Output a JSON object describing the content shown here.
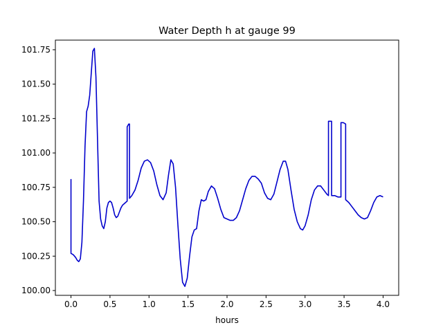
{
  "chart_data": {
    "type": "line",
    "title": "Water Depth h at gauge 99",
    "xlabel": "hours",
    "ylabel": "",
    "xlim": [
      -0.2,
      4.2
    ],
    "ylim": [
      99.965,
      101.82
    ],
    "xticks": [
      0.0,
      0.5,
      1.0,
      1.5,
      2.0,
      2.5,
      3.0,
      3.5,
      4.0
    ],
    "xtick_labels": [
      "0.0",
      "0.5",
      "1.0",
      "1.5",
      "2.0",
      "2.5",
      "3.0",
      "3.5",
      "4.0"
    ],
    "yticks": [
      100.0,
      100.25,
      100.5,
      100.75,
      101.0,
      101.25,
      101.5,
      101.75
    ],
    "ytick_labels": [
      "100.00",
      "100.25",
      "100.50",
      "100.75",
      "101.00",
      "101.25",
      "101.50",
      "101.75"
    ],
    "grid": false,
    "series": [
      {
        "color": "#0000cc",
        "points": [
          [
            0.0,
            100.81
          ],
          [
            0.0,
            100.27
          ],
          [
            0.03,
            100.26
          ],
          [
            0.06,
            100.24
          ],
          [
            0.08,
            100.22
          ],
          [
            0.1,
            100.21
          ],
          [
            0.12,
            100.23
          ],
          [
            0.14,
            100.35
          ],
          [
            0.16,
            100.65
          ],
          [
            0.18,
            101.05
          ],
          [
            0.2,
            101.3
          ],
          [
            0.22,
            101.34
          ],
          [
            0.24,
            101.42
          ],
          [
            0.26,
            101.58
          ],
          [
            0.28,
            101.74
          ],
          [
            0.3,
            101.76
          ],
          [
            0.32,
            101.55
          ],
          [
            0.34,
            101.1
          ],
          [
            0.36,
            100.65
          ],
          [
            0.38,
            100.52
          ],
          [
            0.4,
            100.47
          ],
          [
            0.42,
            100.45
          ],
          [
            0.44,
            100.5
          ],
          [
            0.46,
            100.6
          ],
          [
            0.48,
            100.64
          ],
          [
            0.5,
            100.65
          ],
          [
            0.52,
            100.64
          ],
          [
            0.54,
            100.6
          ],
          [
            0.56,
            100.55
          ],
          [
            0.58,
            100.53
          ],
          [
            0.6,
            100.54
          ],
          [
            0.62,
            100.57
          ],
          [
            0.64,
            100.6
          ],
          [
            0.66,
            100.62
          ],
          [
            0.68,
            100.63
          ],
          [
            0.72,
            100.65
          ],
          [
            0.72,
            101.19
          ],
          [
            0.74,
            101.21
          ],
          [
            0.75,
            101.21
          ],
          [
            0.75,
            100.67
          ],
          [
            0.78,
            100.69
          ],
          [
            0.82,
            100.73
          ],
          [
            0.86,
            100.8
          ],
          [
            0.9,
            100.89
          ],
          [
            0.94,
            100.94
          ],
          [
            0.98,
            100.95
          ],
          [
            1.02,
            100.93
          ],
          [
            1.06,
            100.87
          ],
          [
            1.1,
            100.77
          ],
          [
            1.14,
            100.69
          ],
          [
            1.18,
            100.66
          ],
          [
            1.22,
            100.71
          ],
          [
            1.25,
            100.84
          ],
          [
            1.28,
            100.95
          ],
          [
            1.31,
            100.92
          ],
          [
            1.34,
            100.75
          ],
          [
            1.37,
            100.48
          ],
          [
            1.4,
            100.23
          ],
          [
            1.43,
            100.06
          ],
          [
            1.46,
            100.03
          ],
          [
            1.49,
            100.09
          ],
          [
            1.52,
            100.25
          ],
          [
            1.55,
            100.39
          ],
          [
            1.58,
            100.44
          ],
          [
            1.61,
            100.45
          ],
          [
            1.64,
            100.58
          ],
          [
            1.67,
            100.66
          ],
          [
            1.7,
            100.65
          ],
          [
            1.73,
            100.66
          ],
          [
            1.76,
            100.72
          ],
          [
            1.8,
            100.76
          ],
          [
            1.84,
            100.74
          ],
          [
            1.88,
            100.67
          ],
          [
            1.92,
            100.59
          ],
          [
            1.96,
            100.53
          ],
          [
            2.0,
            100.52
          ],
          [
            2.04,
            100.51
          ],
          [
            2.08,
            100.51
          ],
          [
            2.12,
            100.53
          ],
          [
            2.16,
            100.58
          ],
          [
            2.2,
            100.66
          ],
          [
            2.24,
            100.74
          ],
          [
            2.28,
            100.8
          ],
          [
            2.32,
            100.83
          ],
          [
            2.36,
            100.83
          ],
          [
            2.4,
            100.81
          ],
          [
            2.44,
            100.78
          ],
          [
            2.48,
            100.71
          ],
          [
            2.52,
            100.67
          ],
          [
            2.56,
            100.66
          ],
          [
            2.6,
            100.7
          ],
          [
            2.64,
            100.79
          ],
          [
            2.68,
            100.88
          ],
          [
            2.72,
            100.94
          ],
          [
            2.75,
            100.94
          ],
          [
            2.78,
            100.88
          ],
          [
            2.82,
            100.73
          ],
          [
            2.86,
            100.59
          ],
          [
            2.9,
            100.5
          ],
          [
            2.94,
            100.45
          ],
          [
            2.97,
            100.44
          ],
          [
            3.0,
            100.47
          ],
          [
            3.04,
            100.55
          ],
          [
            3.08,
            100.66
          ],
          [
            3.12,
            100.73
          ],
          [
            3.16,
            100.76
          ],
          [
            3.2,
            100.76
          ],
          [
            3.24,
            100.73
          ],
          [
            3.28,
            100.7
          ],
          [
            3.3,
            100.69
          ],
          [
            3.3,
            101.23
          ],
          [
            3.34,
            101.23
          ],
          [
            3.34,
            100.69
          ],
          [
            3.38,
            100.69
          ],
          [
            3.42,
            100.68
          ],
          [
            3.46,
            100.68
          ],
          [
            3.46,
            101.22
          ],
          [
            3.49,
            101.22
          ],
          [
            3.52,
            101.21
          ],
          [
            3.52,
            100.66
          ],
          [
            3.56,
            100.64
          ],
          [
            3.6,
            100.61
          ],
          [
            3.64,
            100.58
          ],
          [
            3.68,
            100.55
          ],
          [
            3.72,
            100.53
          ],
          [
            3.76,
            100.52
          ],
          [
            3.8,
            100.53
          ],
          [
            3.84,
            100.58
          ],
          [
            3.88,
            100.64
          ],
          [
            3.92,
            100.68
          ],
          [
            3.96,
            100.69
          ],
          [
            4.0,
            100.68
          ]
        ]
      }
    ]
  }
}
